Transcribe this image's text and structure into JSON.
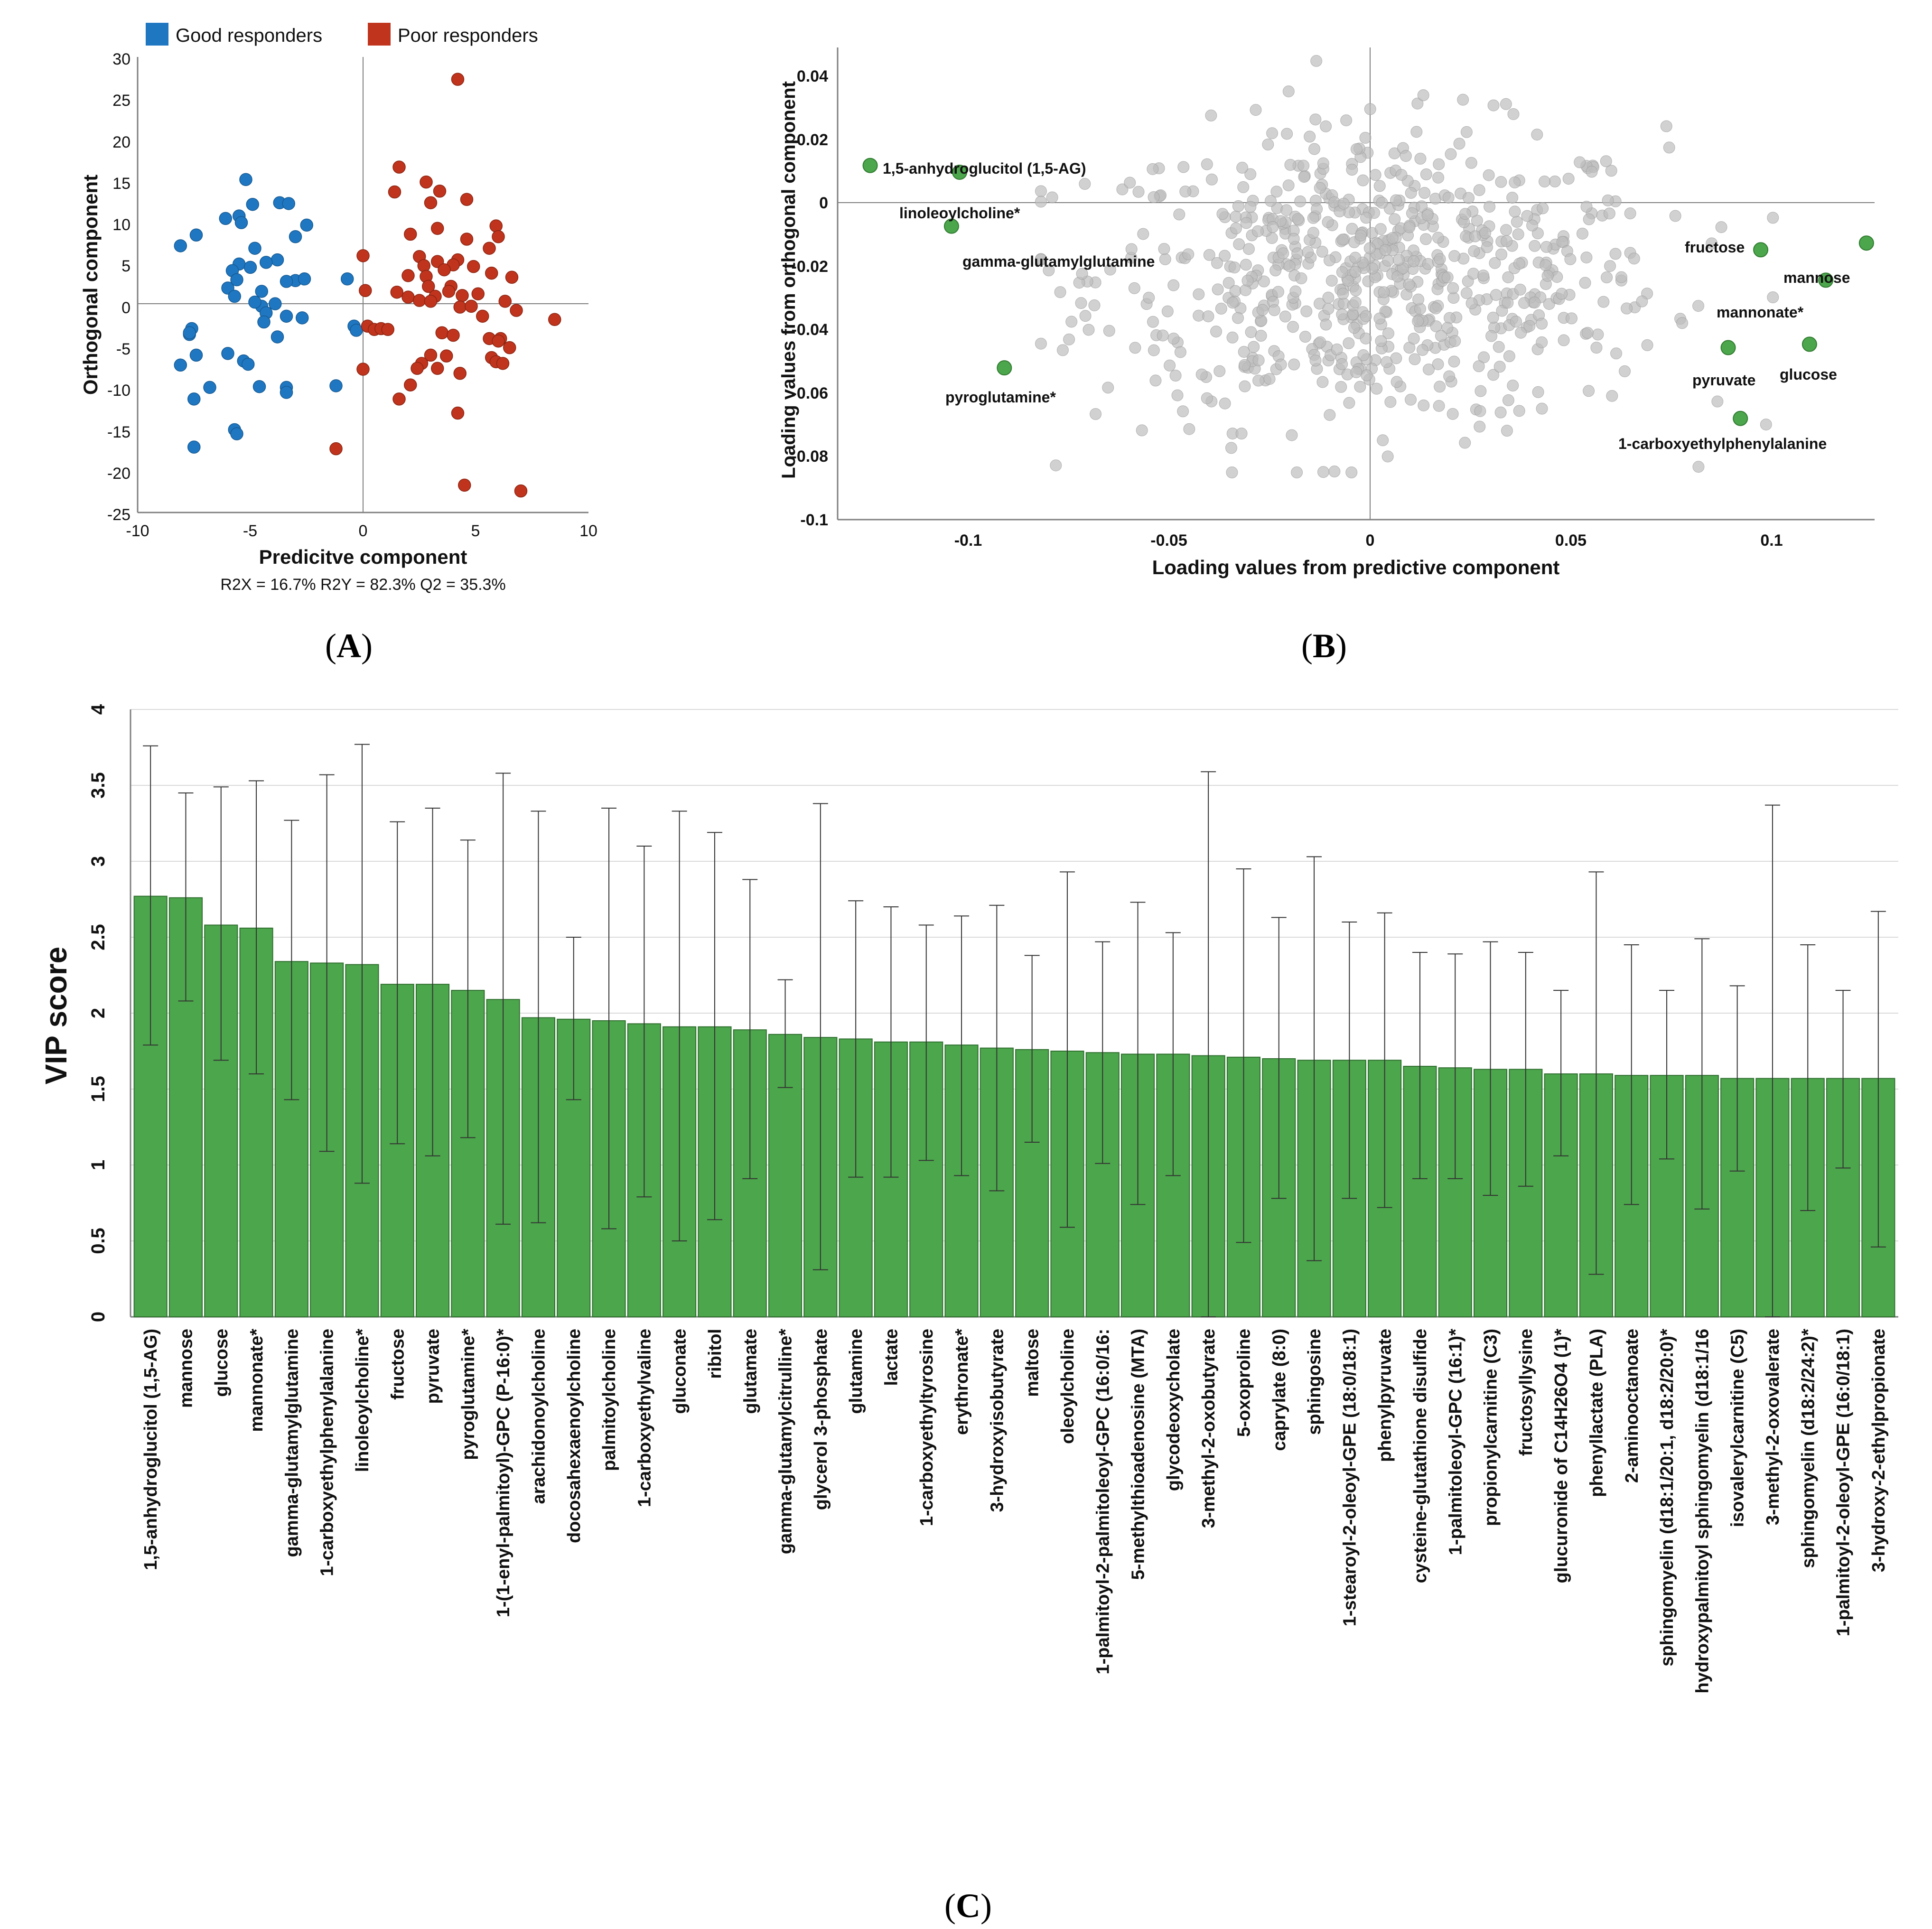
{
  "figure": {
    "panel_labels": [
      "A",
      "B",
      "C"
    ],
    "colors": {
      "good": "#1F77C2",
      "poor": "#C0341D",
      "green": "#4CA64C",
      "grey_point": "#BDBDBD",
      "axis": "#7F7F7F",
      "highlight_text": "#2E6E2E"
    }
  },
  "chart_data": [
    {
      "panel": "A",
      "type": "scatter",
      "title": "",
      "xlabel": "Predicitve component",
      "ylabel": "Orthogonal component",
      "footnote": "R2X = 16.7% R2Y = 82.3% Q2 = 35.3%",
      "xlim": [
        -10,
        10
      ],
      "ylim": [
        -25,
        30
      ],
      "xticks": [
        "-10",
        "-5",
        "0",
        "5",
        "10"
      ],
      "yticks": [
        "30",
        "25",
        "20",
        "15",
        "10",
        "5",
        "0",
        "-5",
        "-10",
        "-15",
        "-20",
        "-25"
      ],
      "legend": [
        "Good responders",
        "Poor responders"
      ],
      "series": [
        {
          "name": "Good responders",
          "points": [
            [
              -5.2,
              15.2
            ],
            [
              -3.7,
              12.4
            ],
            [
              -3.3,
              12.3
            ],
            [
              -4.9,
              12.2
            ],
            [
              -6.1,
              10.5
            ],
            [
              -5.5,
              10.8
            ],
            [
              -5.4,
              10.0
            ],
            [
              -2.5,
              9.7
            ],
            [
              -7.4,
              8.5
            ],
            [
              -3.0,
              8.3
            ],
            [
              -8.1,
              7.2
            ],
            [
              -4.8,
              6.9
            ],
            [
              -5.5,
              5.0
            ],
            [
              -5.0,
              4.6
            ],
            [
              -3.8,
              5.5
            ],
            [
              -4.3,
              5.2
            ],
            [
              -3.0,
              3.0
            ],
            [
              -5.8,
              4.2
            ],
            [
              -5.6,
              3.1
            ],
            [
              -3.4,
              2.9
            ],
            [
              -6.0,
              2.1
            ],
            [
              -4.5,
              1.7
            ],
            [
              -5.7,
              1.1
            ],
            [
              -2.6,
              3.2
            ],
            [
              -0.7,
              3.2
            ],
            [
              -3.9,
              0.2
            ],
            [
              -4.5,
              -0.1
            ],
            [
              -4.8,
              0.4
            ],
            [
              -4.3,
              -0.9
            ],
            [
              -3.4,
              -1.3
            ],
            [
              -4.4,
              -2.0
            ],
            [
              -2.7,
              -1.5
            ],
            [
              -0.4,
              -2.5
            ],
            [
              -7.6,
              -2.8
            ],
            [
              -7.7,
              -3.5
            ],
            [
              -3.8,
              -3.8
            ],
            [
              -8.1,
              -7.2
            ],
            [
              -7.4,
              -6.0
            ],
            [
              -6.0,
              -5.8
            ],
            [
              -5.3,
              -6.7
            ],
            [
              -5.1,
              -7.1
            ],
            [
              -6.8,
              -9.9
            ],
            [
              -4.6,
              -9.8
            ],
            [
              -3.4,
              -9.9
            ],
            [
              -3.4,
              -10.5
            ],
            [
              -7.5,
              -11.3
            ],
            [
              -5.7,
              -15.0
            ],
            [
              -5.6,
              -15.5
            ],
            [
              -1.2,
              -9.7
            ],
            [
              -7.5,
              -17.1
            ],
            [
              -0.3,
              -3.0
            ],
            [
              -7.7,
              -3.3
            ]
          ]
        },
        {
          "name": "Poor responders",
          "points": [
            [
              4.2,
              27.3
            ],
            [
              1.6,
              16.7
            ],
            [
              2.8,
              14.9
            ],
            [
              3.4,
              13.8
            ],
            [
              1.4,
              13.7
            ],
            [
              4.6,
              12.8
            ],
            [
              3.0,
              12.4
            ],
            [
              3.3,
              9.3
            ],
            [
              5.9,
              9.6
            ],
            [
              2.1,
              8.6
            ],
            [
              4.6,
              8.0
            ],
            [
              6.0,
              8.3
            ],
            [
              5.6,
              6.9
            ],
            [
              0.0,
              6.0
            ],
            [
              2.5,
              5.9
            ],
            [
              3.3,
              5.3
            ],
            [
              2.7,
              4.8
            ],
            [
              4.2,
              5.5
            ],
            [
              4.0,
              4.9
            ],
            [
              3.6,
              4.3
            ],
            [
              4.9,
              4.7
            ],
            [
              5.7,
              3.9
            ],
            [
              2.0,
              3.6
            ],
            [
              2.8,
              3.5
            ],
            [
              6.6,
              3.4
            ],
            [
              0.1,
              1.8
            ],
            [
              2.9,
              2.3
            ],
            [
              3.9,
              2.3
            ],
            [
              3.8,
              1.7
            ],
            [
              1.5,
              1.6
            ],
            [
              2.0,
              1.0
            ],
            [
              3.2,
              1.1
            ],
            [
              4.4,
              1.2
            ],
            [
              5.1,
              1.4
            ],
            [
              2.5,
              0.6
            ],
            [
              3.0,
              0.5
            ],
            [
              6.3,
              0.5
            ],
            [
              4.3,
              -0.2
            ],
            [
              4.8,
              -0.1
            ],
            [
              6.8,
              -0.6
            ],
            [
              5.3,
              -1.3
            ],
            [
              8.5,
              -1.7
            ],
            [
              0.2,
              -2.5
            ],
            [
              0.5,
              -2.9
            ],
            [
              0.8,
              -2.8
            ],
            [
              1.1,
              -2.9
            ],
            [
              3.5,
              -3.3
            ],
            [
              4.0,
              -3.6
            ],
            [
              5.6,
              -4.0
            ],
            [
              6.1,
              -4.0
            ],
            [
              6.0,
              -4.3
            ],
            [
              6.5,
              -5.1
            ],
            [
              3.0,
              -6.0
            ],
            [
              3.7,
              -6.1
            ],
            [
              5.7,
              -6.3
            ],
            [
              5.9,
              -6.8
            ],
            [
              6.2,
              -7.0
            ],
            [
              2.6,
              -7.0
            ],
            [
              2.4,
              -7.6
            ],
            [
              3.3,
              -7.6
            ],
            [
              0.0,
              -7.7
            ],
            [
              4.3,
              -8.2
            ],
            [
              2.1,
              -9.6
            ],
            [
              1.6,
              -11.3
            ],
            [
              4.2,
              -13.0
            ],
            [
              -1.2,
              -17.3
            ],
            [
              4.5,
              -21.7
            ],
            [
              7.0,
              -22.4
            ]
          ]
        }
      ]
    },
    {
      "panel": "B",
      "type": "scatter",
      "title": "",
      "xlabel": "Loading values from predictive component",
      "ylabel": "Loading values from orthogonal component",
      "xlim": [
        -0.13,
        0.125
      ],
      "ylim": [
        -0.1,
        0.04
      ],
      "xticks": [
        "-0.1",
        "-0.05",
        "0",
        "0.05",
        "0.1"
      ],
      "yticks": [
        "0.04",
        "0.02",
        "0",
        "-0.02",
        "-0.04",
        "-0.06",
        "-0.08",
        "-0.1"
      ],
      "background_points": {
        "count": 700,
        "x_range": [
          -0.08,
          0.1
        ],
        "y_range": [
          -0.086,
          0.036
        ],
        "center": [
          0.003,
          -0.028
        ]
      },
      "highlighted": [
        {
          "label": "1,5-anhydroglucitol (1,5-AG)",
          "x": -0.122,
          "y": 0.005
        },
        {
          "label": "linoleoylcholine*",
          "x": -0.1,
          "y": 0.003
        },
        {
          "label": "gamma-glutamylglutamine",
          "x": -0.102,
          "y": -0.013
        },
        {
          "label": "pyroglutamine*",
          "x": -0.089,
          "y": -0.055
        },
        {
          "label": "fructose",
          "x": 0.097,
          "y": -0.02
        },
        {
          "label": "mannose",
          "x": 0.123,
          "y": -0.018
        },
        {
          "label": "mannonate*",
          "x": 0.113,
          "y": -0.029
        },
        {
          "label": "pyruvate",
          "x": 0.089,
          "y": -0.049
        },
        {
          "label": "glucose",
          "x": 0.109,
          "y": -0.048
        },
        {
          "label": "1-carboxyethylphenylalanine",
          "x": 0.092,
          "y": -0.07
        }
      ]
    },
    {
      "panel": "C",
      "type": "bar",
      "title": "",
      "xlabel": "",
      "ylabel": "VIP score",
      "ylim": [
        0,
        4
      ],
      "yticks": [
        "4",
        "3.5",
        "3",
        "2.5",
        "2",
        "1.5",
        "1",
        "0.5",
        "0"
      ],
      "categories": [
        "1,5-anhydroglucitol (1,5-AG)",
        "mannose",
        "glucose",
        "mannonate*",
        "gamma-glutamylglutamine",
        "1-carboxyethylphenylalanine",
        "linoleoylcholine*",
        "fructose",
        "pyruvate",
        "pyroglutamine*",
        "1-(1-enyl-palmitoyl)-GPC (P-16:0)*",
        "arachidonoylcholine",
        "docosahexaenoylcholine",
        "palmitoylcholine",
        "1-carboxyethylvaline",
        "gluconate",
        "ribitol",
        "glutamate",
        "gamma-glutamylcitrulline*",
        "glycerol 3-phosphate",
        "glutamine",
        "lactate",
        "1-carboxyethyltyrosine",
        "erythronate*",
        "3-hydroxyisobutyrate",
        "maltose",
        "oleoylcholine",
        "1-palmitoyl-2-palmitoleoyl-GPC (16:0/16:",
        "5-methylthioadenosine (MTA)",
        "glycodeoxycholate",
        "3-methyl-2-oxobutyrate",
        "5-oxoproline",
        "caprylate (8:0)",
        "sphingosine",
        "1-stearoyl-2-oleoyl-GPE (18:0/18:1)",
        "phenylpyruvate",
        "cysteine-glutathione disulfide",
        "1-palmitoleoyl-GPC (16:1)*",
        "propionylcarnitine (C3)",
        "fructosyllysine",
        "glucuronide of C14H26O4 (1)*",
        "phenyllactate (PLA)",
        "2-aminooctanoate",
        "sphingomyelin (d18:1/20:1, d18:2/20:0)*",
        "hydroxypalmitoyl sphingomyelin (d18:1/16",
        "isovalerylcarnitine (C5)",
        "3-methyl-2-oxovalerate",
        "sphingomyelin (d18:2/24:2)*",
        "1-palmitoyl-2-oleoyl-GPE (16:0/18:1)",
        "3-hydroxy-2-ethylpropionate"
      ],
      "values": [
        2.77,
        2.76,
        2.58,
        2.56,
        2.34,
        2.33,
        2.32,
        2.19,
        2.19,
        2.15,
        2.09,
        1.97,
        1.96,
        1.95,
        1.93,
        1.91,
        1.91,
        1.89,
        1.86,
        1.84,
        1.83,
        1.81,
        1.81,
        1.79,
        1.77,
        1.76,
        1.75,
        1.74,
        1.73,
        1.73,
        1.72,
        1.71,
        1.7,
        1.69,
        1.69,
        1.69,
        1.65,
        1.64,
        1.63,
        1.63,
        1.6,
        1.6,
        1.59,
        1.59,
        1.59,
        1.57,
        1.57,
        1.57,
        1.57,
        1.57
      ],
      "error_low": [
        1.79,
        2.08,
        1.69,
        1.6,
        1.43,
        1.09,
        0.88,
        1.14,
        1.06,
        1.18,
        0.61,
        0.62,
        1.43,
        0.58,
        0.79,
        0.5,
        0.64,
        0.91,
        1.51,
        0.31,
        0.92,
        0.92,
        1.03,
        0.93,
        0.83,
        1.15,
        0.59,
        1.01,
        0.74,
        0.93,
        0.0,
        0.49,
        0.78,
        0.37,
        0.78,
        0.72,
        0.91,
        0.91,
        0.8,
        0.86,
        1.06,
        0.28,
        0.74,
        1.04,
        0.71,
        0.96,
        0.0,
        0.7,
        0.98,
        0.46
      ],
      "error_high": [
        3.76,
        3.45,
        3.49,
        3.53,
        3.27,
        3.57,
        3.77,
        3.26,
        3.35,
        3.14,
        3.58,
        3.33,
        2.5,
        3.35,
        3.1,
        3.33,
        3.19,
        2.88,
        2.22,
        3.38,
        2.74,
        2.7,
        2.58,
        2.64,
        2.71,
        2.38,
        2.93,
        2.47,
        2.73,
        2.53,
        3.59,
        2.95,
        2.63,
        3.03,
        2.6,
        2.66,
        2.4,
        2.39,
        2.47,
        2.4,
        2.15,
        2.93,
        2.45,
        2.15,
        2.49,
        2.18,
        3.37,
        2.45,
        2.15,
        2.67
      ]
    }
  ]
}
